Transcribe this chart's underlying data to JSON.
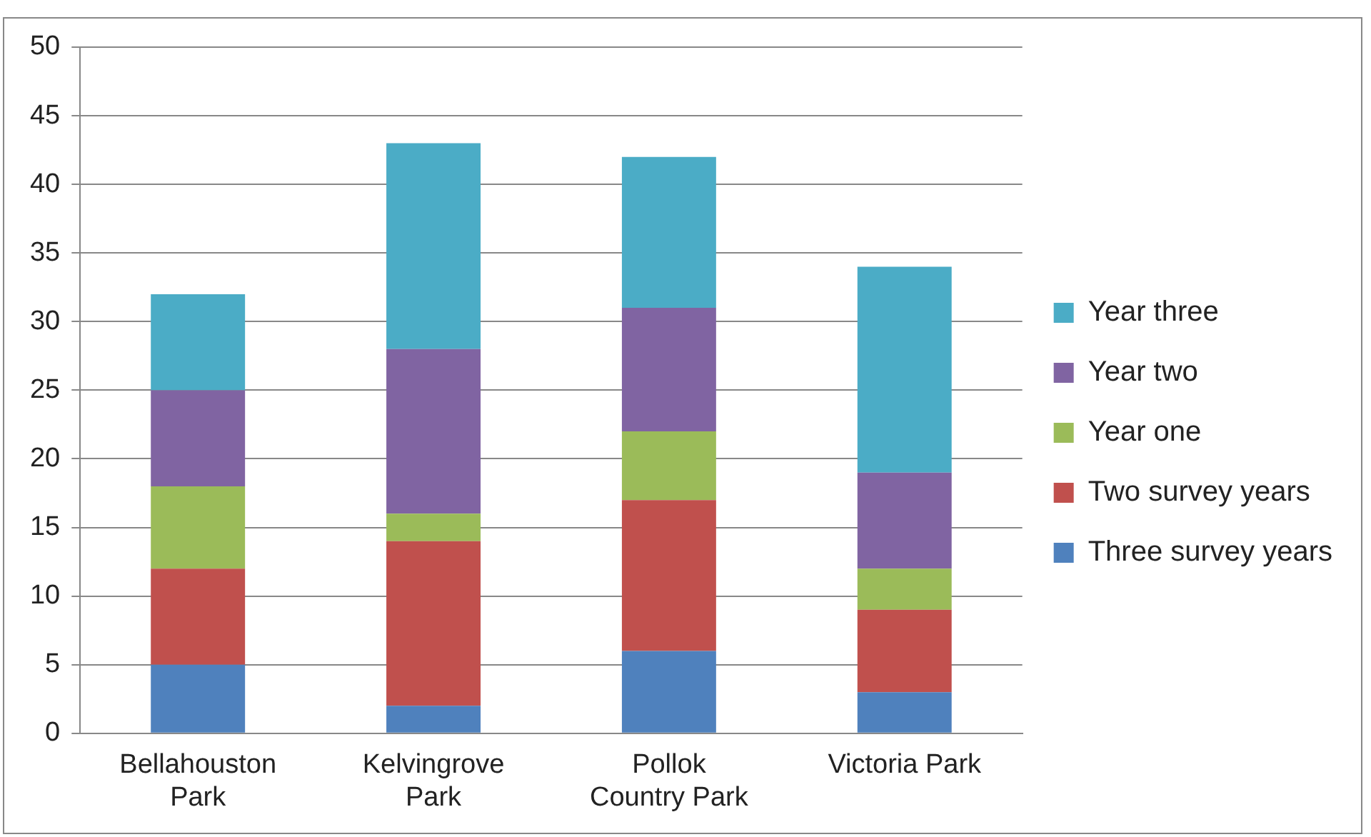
{
  "chart_data": {
    "type": "bar",
    "stacked": true,
    "categories": [
      "Bellahouston Park",
      "Kelvingrove Park",
      "Pollok Country Park",
      "Victoria Park"
    ],
    "series": [
      {
        "name": "Three survey years",
        "color": "#4f81bd",
        "values": [
          5,
          2,
          6,
          3
        ]
      },
      {
        "name": "Two survey years",
        "color": "#c0504d",
        "values": [
          7,
          12,
          11,
          6
        ]
      },
      {
        "name": "Year one",
        "color": "#9bbb59",
        "values": [
          6,
          2,
          5,
          3
        ]
      },
      {
        "name": "Year two",
        "color": "#8064a2",
        "values": [
          7,
          12,
          9,
          7
        ]
      },
      {
        "name": "Year three",
        "color": "#4bacc6",
        "values": [
          7,
          15,
          11,
          15
        ]
      }
    ],
    "ylim": [
      0,
      50
    ],
    "yticks": [
      0,
      5,
      10,
      15,
      20,
      25,
      30,
      35,
      40,
      45,
      50
    ],
    "grid": "y",
    "legend": "right"
  }
}
